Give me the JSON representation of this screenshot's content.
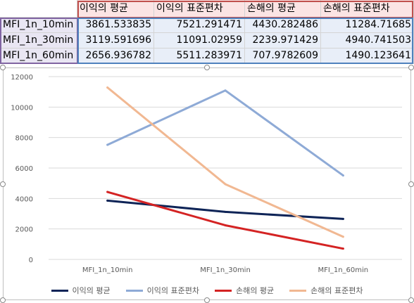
{
  "sheet": {
    "headers": [
      "이익의 평균",
      "이익의 표준편차",
      "손해의 평균",
      "손해의 표준편차"
    ],
    "rows": [
      {
        "label": "MFI_1n_10min",
        "values": [
          "3861.533835",
          "7521.291471",
          "4430.282486",
          "11284.71685"
        ]
      },
      {
        "label": "MFI_1n_30min",
        "values": [
          "3119.591696",
          "11091.02959",
          "2239.971429",
          "4940.741503"
        ]
      },
      {
        "label": "MFI_1n_60min",
        "values": [
          "2656.936782",
          "5511.283971",
          "707.9782609",
          "1490.123641"
        ]
      }
    ]
  },
  "chart_data": {
    "type": "line",
    "categories": [
      "MFI_1n_10min",
      "MFI_1n_30min",
      "MFI_1n_60min"
    ],
    "series": [
      {
        "name": "이익의 평균",
        "color": "#0e2457",
        "values": [
          3861.533835,
          3119.591696,
          2656.936782
        ]
      },
      {
        "name": "이익의 표준편차",
        "color": "#8eaad6",
        "values": [
          7521.291471,
          11091.02959,
          5511.283971
        ]
      },
      {
        "name": "손해의 평균",
        "color": "#d42323",
        "values": [
          4430.282486,
          2239.971429,
          707.9782609
        ]
      },
      {
        "name": "손해의 표준편차",
        "color": "#f1b892",
        "values": [
          11284.71685,
          4940.741503,
          1490.123641
        ]
      }
    ],
    "ylim": [
      0,
      12000
    ],
    "yticks": [
      0,
      2000,
      4000,
      6000,
      8000,
      10000,
      12000
    ],
    "grid": true,
    "legend": "bottom"
  }
}
